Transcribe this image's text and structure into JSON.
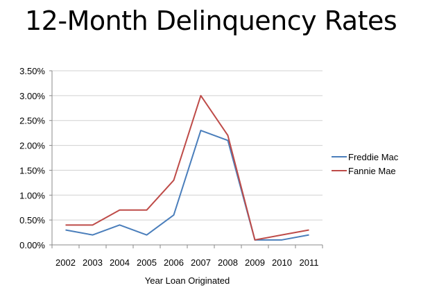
{
  "chart_data": {
    "type": "line",
    "title": "12-Month Delinquency Rates",
    "xlabel": "Year Loan Originated",
    "ylabel": "",
    "categories": [
      "2002",
      "2003",
      "2004",
      "2005",
      "2006",
      "2007",
      "2008",
      "2009",
      "2010",
      "2011"
    ],
    "ylim": [
      0,
      3.5
    ],
    "yticks": [
      "0.00%",
      "0.50%",
      "1.00%",
      "1.50%",
      "2.00%",
      "2.50%",
      "3.00%",
      "3.50%"
    ],
    "grid": true,
    "legend_position": "right",
    "series": [
      {
        "name": "Freddie Mac",
        "color": "#4a7ebb",
        "values": [
          0.3,
          0.2,
          0.4,
          0.2,
          0.6,
          2.3,
          2.1,
          0.1,
          0.1,
          0.2
        ]
      },
      {
        "name": "Fannie Mae",
        "color": "#be4b48",
        "values": [
          0.4,
          0.4,
          0.7,
          0.7,
          1.3,
          3.0,
          2.2,
          0.1,
          0.2,
          0.3
        ]
      }
    ]
  }
}
